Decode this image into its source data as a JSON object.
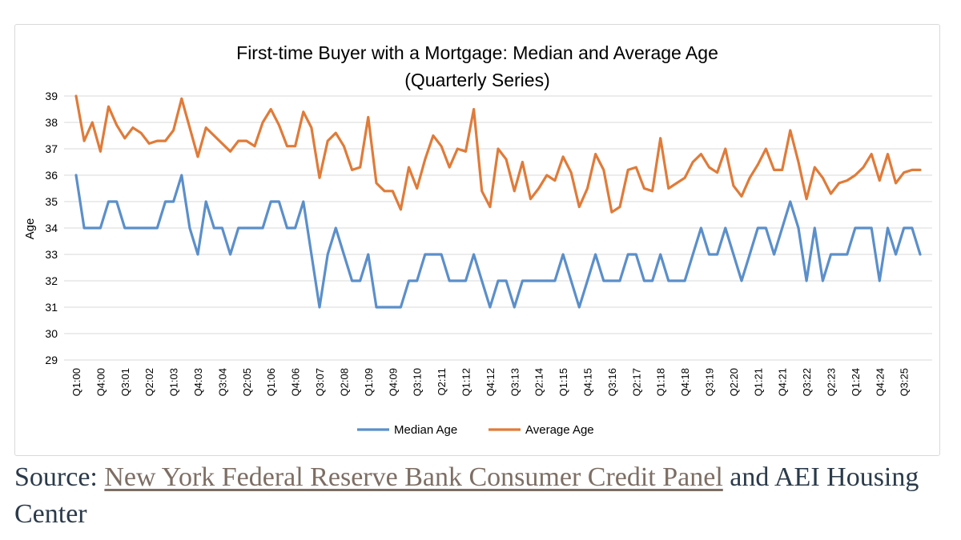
{
  "chart_data": {
    "type": "line",
    "title": [
      "First-time Buyer with a Mortgage: Median and Average Age",
      "(Quarterly Series)"
    ],
    "ylabel": "Age",
    "xlabel": "",
    "ylim": [
      29,
      39
    ],
    "yticks": [
      29,
      30,
      31,
      32,
      33,
      34,
      35,
      36,
      37,
      38,
      39
    ],
    "grid": true,
    "legend_position": "bottom",
    "x_tick_labels": [
      "Q1:00",
      "Q4:00",
      "Q3:01",
      "Q2:02",
      "Q1:03",
      "Q4:03",
      "Q3:04",
      "Q2:05",
      "Q1:06",
      "Q4:06",
      "Q3:07",
      "Q2:08",
      "Q1:09",
      "Q4:09",
      "Q3:10",
      "Q2:11",
      "Q1:12",
      "Q4:12",
      "Q3:13",
      "Q2:14",
      "Q1:15",
      "Q4:15",
      "Q3:16",
      "Q2:17",
      "Q1:18",
      "Q4:18",
      "Q3:19",
      "Q2:20",
      "Q1:21",
      "Q4:21",
      "Q3:22",
      "Q2:23",
      "Q1:24",
      "Q4:24",
      "Q3:25"
    ],
    "series": [
      {
        "name": "Median Age",
        "color": "#5b8fca",
        "values": [
          36,
          34,
          34,
          34,
          35,
          35,
          34,
          34,
          34,
          34,
          34,
          35,
          35,
          36,
          34,
          33,
          35,
          34,
          34,
          33,
          34,
          34,
          34,
          34,
          35,
          35,
          34,
          34,
          35,
          33,
          31,
          33,
          34,
          33,
          32,
          32,
          33,
          31,
          31,
          31,
          31,
          32,
          32,
          33,
          33,
          33,
          32,
          32,
          32,
          33,
          32,
          31,
          32,
          32,
          31,
          32,
          32,
          32,
          32,
          32,
          33,
          32,
          31,
          32,
          33,
          32,
          32,
          32,
          33,
          33,
          32,
          32,
          33,
          32,
          32,
          32,
          33,
          34,
          33,
          33,
          34,
          33,
          32,
          33,
          34,
          34,
          33,
          34,
          35,
          34,
          32,
          34,
          32,
          33,
          33,
          33,
          34,
          34,
          34,
          32,
          34,
          33,
          34,
          34,
          33
        ]
      },
      {
        "name": "Average Age",
        "color": "#e07b39",
        "values": [
          39,
          37.3,
          38,
          36.9,
          38.6,
          37.9,
          37.4,
          37.8,
          37.6,
          37.2,
          37.3,
          37.3,
          37.7,
          38.9,
          37.8,
          36.7,
          37.8,
          37.5,
          37.2,
          36.9,
          37.3,
          37.3,
          37.1,
          38,
          38.5,
          37.9,
          37.1,
          37.1,
          38.4,
          37.8,
          35.9,
          37.3,
          37.6,
          37.1,
          36.2,
          36.3,
          38.2,
          35.7,
          35.4,
          35.4,
          34.7,
          36.3,
          35.5,
          36.6,
          37.5,
          37.1,
          36.3,
          37,
          36.9,
          38.5,
          35.4,
          34.8,
          37,
          36.6,
          35.4,
          36.5,
          35.1,
          35.5,
          36,
          35.8,
          36.7,
          36.1,
          34.8,
          35.5,
          36.8,
          36.2,
          34.6,
          34.8,
          36.2,
          36.3,
          35.5,
          35.4,
          37.4,
          35.5,
          35.7,
          35.9,
          36.5,
          36.8,
          36.3,
          36.1,
          37,
          35.6,
          35.2,
          35.9,
          36.4,
          37,
          36.2,
          36.2,
          37.7,
          36.5,
          35.1,
          36.3,
          35.9,
          35.3,
          35.7,
          35.8,
          36,
          36.3,
          36.8,
          35.8,
          36.8,
          35.7,
          36.1,
          36.2,
          36.2
        ]
      }
    ]
  },
  "source": {
    "prefix": "Source: ",
    "link_text": "New York Federal Reserve Bank Consumer Credit Panel",
    "suffix": " and AEI Housing Center"
  }
}
